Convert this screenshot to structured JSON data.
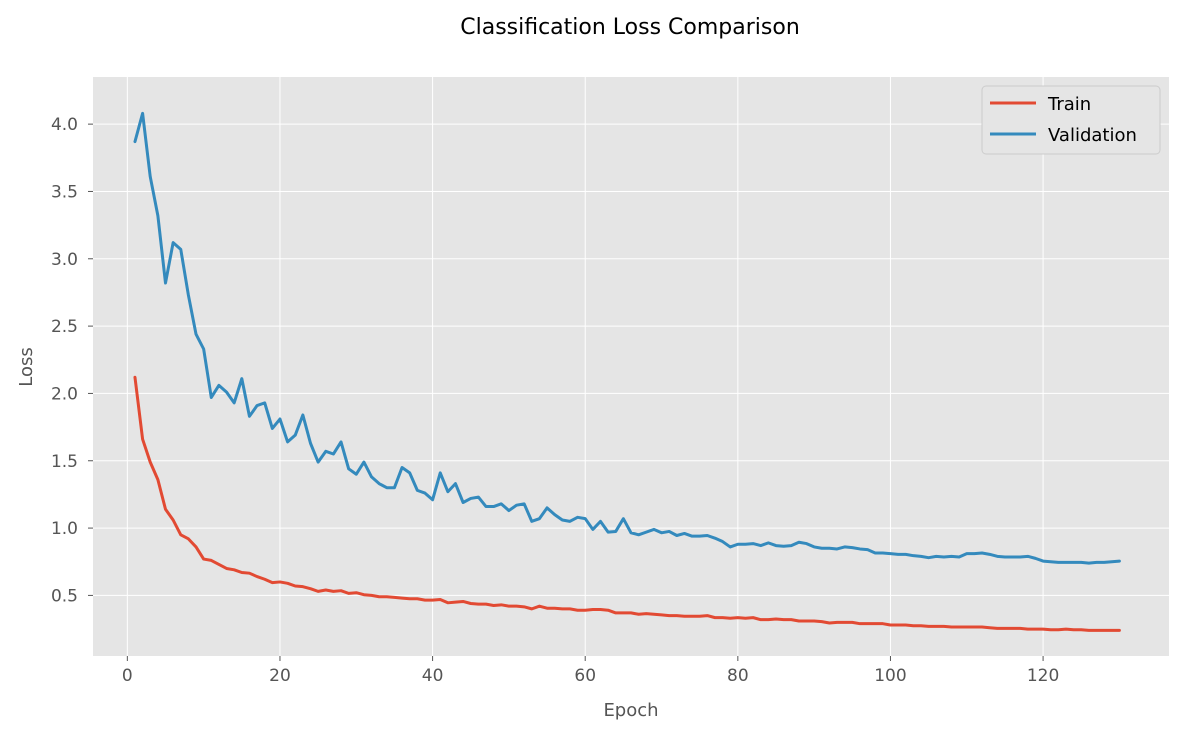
{
  "chart_data": {
    "type": "line",
    "title": "Classification Loss Comparison",
    "xlabel": "Epoch",
    "ylabel": "Loss",
    "xlim": [
      -4.5,
      136.5
    ],
    "ylim": [
      0.05,
      4.35
    ],
    "xticks": [
      0,
      20,
      40,
      60,
      80,
      100,
      120
    ],
    "yticks": [
      0.5,
      1.0,
      1.5,
      2.0,
      2.5,
      3.0,
      3.5,
      4.0
    ],
    "xtick_labels": [
      "0",
      "20",
      "40",
      "60",
      "80",
      "100",
      "120"
    ],
    "ytick_labels": [
      "0.5",
      "1.0",
      "1.5",
      "2.0",
      "2.5",
      "3.0",
      "3.5",
      "4.0"
    ],
    "grid": true,
    "legend_position": "top-right",
    "x": [
      1,
      2,
      3,
      4,
      5,
      6,
      7,
      8,
      9,
      10,
      11,
      12,
      13,
      14,
      15,
      16,
      17,
      18,
      19,
      20,
      21,
      22,
      23,
      24,
      25,
      26,
      27,
      28,
      29,
      30,
      31,
      32,
      33,
      34,
      35,
      36,
      37,
      38,
      39,
      40,
      41,
      42,
      43,
      44,
      45,
      46,
      47,
      48,
      49,
      50,
      51,
      52,
      53,
      54,
      55,
      56,
      57,
      58,
      59,
      60,
      61,
      62,
      63,
      64,
      65,
      66,
      67,
      68,
      69,
      70,
      71,
      72,
      73,
      74,
      75,
      76,
      77,
      78,
      79,
      80,
      81,
      82,
      83,
      84,
      85,
      86,
      87,
      88,
      89,
      90,
      91,
      92,
      93,
      94,
      95,
      96,
      97,
      98,
      99,
      100,
      101,
      102,
      103,
      104,
      105,
      106,
      107,
      108,
      109,
      110,
      111,
      112,
      113,
      114,
      115,
      116,
      117,
      118,
      119,
      120,
      121,
      122,
      123,
      124,
      125,
      126,
      127,
      128,
      129,
      130
    ],
    "series": [
      {
        "name": "Train",
        "color": "#e24a33",
        "values": [
          2.12,
          1.66,
          1.49,
          1.36,
          1.14,
          1.06,
          0.95,
          0.92,
          0.86,
          0.77,
          0.76,
          0.73,
          0.7,
          0.69,
          0.67,
          0.665,
          0.64,
          0.62,
          0.595,
          0.6,
          0.59,
          0.57,
          0.565,
          0.55,
          0.53,
          0.54,
          0.53,
          0.535,
          0.515,
          0.52,
          0.505,
          0.5,
          0.49,
          0.49,
          0.485,
          0.48,
          0.475,
          0.475,
          0.465,
          0.465,
          0.47,
          0.445,
          0.45,
          0.455,
          0.44,
          0.435,
          0.435,
          0.425,
          0.43,
          0.42,
          0.42,
          0.415,
          0.4,
          0.42,
          0.405,
          0.405,
          0.4,
          0.4,
          0.39,
          0.39,
          0.395,
          0.395,
          0.39,
          0.37,
          0.37,
          0.37,
          0.36,
          0.365,
          0.36,
          0.355,
          0.35,
          0.35,
          0.345,
          0.345,
          0.345,
          0.35,
          0.335,
          0.335,
          0.33,
          0.335,
          0.33,
          0.335,
          0.32,
          0.32,
          0.325,
          0.32,
          0.32,
          0.31,
          0.31,
          0.31,
          0.305,
          0.295,
          0.3,
          0.3,
          0.3,
          0.29,
          0.29,
          0.29,
          0.29,
          0.28,
          0.28,
          0.28,
          0.275,
          0.275,
          0.27,
          0.27,
          0.27,
          0.265,
          0.265,
          0.265,
          0.265,
          0.265,
          0.26,
          0.255,
          0.255,
          0.255,
          0.255,
          0.25,
          0.25,
          0.25,
          0.245,
          0.245,
          0.25,
          0.245,
          0.245,
          0.24,
          0.24,
          0.24,
          0.24,
          0.24
        ]
      },
      {
        "name": "Validation",
        "color": "#348abd",
        "values": [
          3.87,
          4.08,
          3.61,
          3.32,
          2.82,
          3.12,
          3.07,
          2.73,
          2.44,
          2.33,
          1.97,
          2.06,
          2.01,
          1.93,
          2.11,
          1.83,
          1.91,
          1.93,
          1.74,
          1.81,
          1.64,
          1.69,
          1.84,
          1.63,
          1.49,
          1.57,
          1.55,
          1.64,
          1.44,
          1.4,
          1.49,
          1.38,
          1.33,
          1.3,
          1.3,
          1.45,
          1.41,
          1.28,
          1.26,
          1.21,
          1.41,
          1.27,
          1.33,
          1.19,
          1.22,
          1.23,
          1.16,
          1.16,
          1.18,
          1.13,
          1.17,
          1.18,
          1.05,
          1.07,
          1.15,
          1.1,
          1.06,
          1.05,
          1.08,
          1.07,
          0.99,
          1.05,
          0.97,
          0.975,
          1.07,
          0.965,
          0.95,
          0.97,
          0.99,
          0.965,
          0.975,
          0.945,
          0.96,
          0.94,
          0.94,
          0.945,
          0.925,
          0.9,
          0.86,
          0.88,
          0.88,
          0.885,
          0.87,
          0.89,
          0.87,
          0.865,
          0.87,
          0.895,
          0.885,
          0.86,
          0.85,
          0.85,
          0.845,
          0.86,
          0.855,
          0.845,
          0.84,
          0.815,
          0.815,
          0.81,
          0.805,
          0.805,
          0.795,
          0.79,
          0.78,
          0.79,
          0.785,
          0.79,
          0.785,
          0.81,
          0.81,
          0.815,
          0.805,
          0.79,
          0.785,
          0.785,
          0.785,
          0.79,
          0.775,
          0.755,
          0.75,
          0.745,
          0.745,
          0.745,
          0.745,
          0.74,
          0.745,
          0.745,
          0.75,
          0.755
        ]
      }
    ]
  },
  "colors": {
    "plot_background": "#e5e5e5",
    "grid": "#ffffff",
    "tick_text": "#555555"
  }
}
